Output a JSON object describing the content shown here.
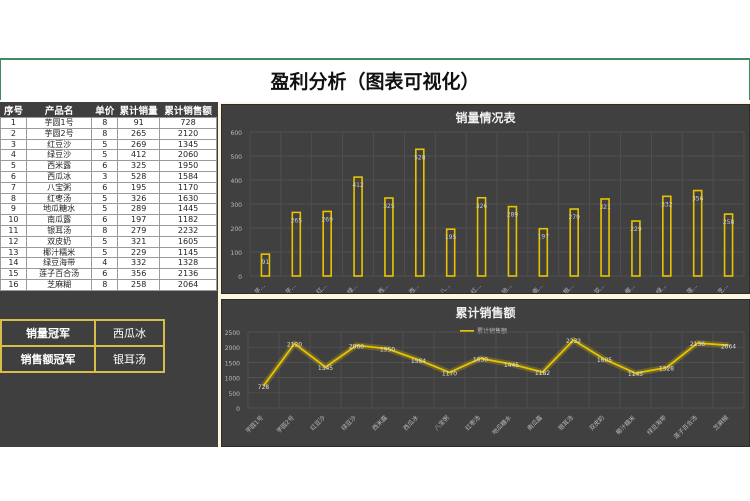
{
  "page": {
    "title": "盈利分析（图表可视化）"
  },
  "table": {
    "headers": [
      "序号",
      "产品名",
      "单价",
      "累计销量",
      "累计销售额"
    ],
    "rows": [
      [
        "1",
        "芋圆1号",
        "8",
        "91",
        "728"
      ],
      [
        "2",
        "芋圆2号",
        "8",
        "265",
        "2120"
      ],
      [
        "3",
        "红豆沙",
        "5",
        "269",
        "1345"
      ],
      [
        "4",
        "绿豆沙",
        "5",
        "412",
        "2060"
      ],
      [
        "5",
        "西米露",
        "6",
        "325",
        "1950"
      ],
      [
        "6",
        "西瓜冰",
        "3",
        "528",
        "1584"
      ],
      [
        "7",
        "八宝粥",
        "6",
        "195",
        "1170"
      ],
      [
        "8",
        "红枣汤",
        "5",
        "326",
        "1630"
      ],
      [
        "9",
        "地瓜糖水",
        "5",
        "289",
        "1445"
      ],
      [
        "10",
        "南瓜露",
        "6",
        "197",
        "1182"
      ],
      [
        "11",
        "银耳汤",
        "8",
        "279",
        "2232"
      ],
      [
        "12",
        "双皮奶",
        "5",
        "321",
        "1605"
      ],
      [
        "13",
        "椰汁糯米",
        "5",
        "229",
        "1145"
      ],
      [
        "14",
        "绿豆海带",
        "4",
        "332",
        "1328"
      ],
      [
        "15",
        "莲子百合汤",
        "6",
        "356",
        "2136"
      ],
      [
        "16",
        "芝麻糊",
        "8",
        "258",
        "2064"
      ]
    ]
  },
  "champions": {
    "volume_label": "销量冠军",
    "volume_value": "西瓜冰",
    "revenue_label": "销售额冠军",
    "revenue_value": "银耳汤"
  },
  "colors": {
    "accent": "#e8c400",
    "panel": "#404040",
    "frame": "#3f8a63"
  },
  "chart_data": [
    {
      "type": "bar",
      "title": "销量情况表",
      "categories": [
        "芋圆1号",
        "芋圆2号",
        "红豆沙",
        "绿豆沙",
        "西米露",
        "西瓜冰",
        "八宝粥",
        "红枣汤",
        "地瓜糖水",
        "南瓜露",
        "银耳汤",
        "双皮奶",
        "椰汁糯米",
        "绿豆海带",
        "莲子百合汤",
        "芝麻糊"
      ],
      "tick_labels": [
        "芋…",
        "芋…",
        "红…",
        "绿…",
        "西…",
        "西…",
        "八…",
        "红…",
        "地…",
        "南…",
        "银…",
        "双…",
        "椰…",
        "绿…",
        "莲…",
        "芝…"
      ],
      "values": [
        91,
        265,
        269,
        412,
        325,
        528,
        195,
        326,
        289,
        197,
        279,
        321,
        229,
        332,
        356,
        258
      ],
      "ylim": [
        0,
        600
      ],
      "yticks": [
        0,
        100,
        200,
        300,
        400,
        500,
        600
      ],
      "grid": true
    },
    {
      "type": "line",
      "title": "累计销售额",
      "legend": [
        "累计销售额"
      ],
      "legend_position": "top",
      "categories": [
        "芋圆1号",
        "芋圆2号",
        "红豆沙",
        "绿豆沙",
        "西米露",
        "西瓜冰",
        "八宝粥",
        "红枣汤",
        "地瓜糖水",
        "南瓜露",
        "银耳汤",
        "双皮奶",
        "椰汁糯米",
        "绿豆海带",
        "莲子百合汤",
        "芝麻糊"
      ],
      "values": [
        728,
        2120,
        1345,
        2060,
        1950,
        1584,
        1170,
        1630,
        1445,
        1182,
        2232,
        1605,
        1145,
        1328,
        2136,
        2064
      ],
      "ylim": [
        0,
        2500
      ],
      "yticks": [
        0,
        500,
        1000,
        1500,
        2000,
        2500
      ],
      "grid": true
    }
  ]
}
